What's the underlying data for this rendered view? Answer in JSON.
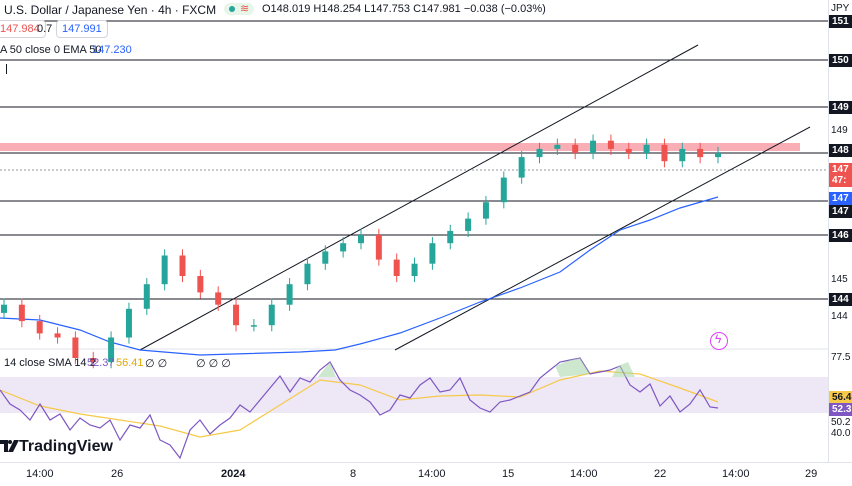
{
  "header": {
    "title": "U.S. Dollar / Japanese Yen · 4h · FXCM",
    "ohlc": "O148.019 H148.254 L147.753 C147.981 −0.038 (−0.03%)",
    "sell_price": "147.984",
    "spread": "0.7",
    "buy_price": "147.991",
    "ema_label": "A 50 close 0 EMA 50",
    "ema_value": "147.230",
    "axis_currency": "JPY"
  },
  "price_axis": {
    "ticks": [
      "151",
      "150",
      "149",
      "149",
      "148",
      "147",
      "146",
      "145",
      "144",
      "144"
    ],
    "labels": {
      "current_top": "147",
      "current_bottom": "47:",
      "ema": "147",
      "level_147": "147",
      "level_146": "146",
      "level_144": "144"
    }
  },
  "rsi": {
    "label": "14 close SMA 14 2",
    "rsi_value": "52.37",
    "sma_value": "56.41",
    "extra": "∅ ∅",
    "extra2": "∅ ∅ ∅",
    "axis_ticks": [
      "77.5",
      "56.4",
      "52.3",
      "50.2",
      "40.0"
    ]
  },
  "time_axis": {
    "ticks": [
      "14:00",
      "26",
      "2024",
      "8",
      "14:00",
      "15",
      "14:00",
      "22",
      "14:00",
      "29"
    ]
  },
  "branding": {
    "name": "TradingView"
  },
  "colors": {
    "up": "#26a69a",
    "down": "#ef5350",
    "ema": "#2962ff",
    "rsi": "#7e57c2",
    "rsi_sma": "#f7c948",
    "resistance_band": "#f8a0a8"
  },
  "chart_data": {
    "type": "candlestick",
    "title": "U.S. Dollar / Japanese Yen · 4h · FXCM",
    "y_unit": "JPY",
    "horizontal_levels": [
      151,
      150,
      149,
      148,
      147,
      146,
      144
    ],
    "resistance_zone": [
      148.2,
      148.4
    ],
    "close_approx": [
      144.3,
      143.9,
      143.6,
      143.5,
      143.0,
      142.9,
      143.5,
      144.2,
      144.8,
      145.5,
      145.0,
      144.6,
      144.3,
      143.8,
      143.8,
      144.3,
      144.8,
      145.3,
      145.6,
      145.8,
      146.0,
      145.4,
      145.0,
      145.3,
      145.8,
      146.1,
      146.4,
      146.8,
      147.4,
      147.9,
      148.1,
      148.2,
      148.0,
      148.3,
      148.1,
      148.0,
      148.2,
      147.8,
      148.1,
      147.9,
      148.0
    ],
    "ema50_value": 147.23,
    "rsi_value": 52.37,
    "rsi_sma_value": 56.41
  }
}
